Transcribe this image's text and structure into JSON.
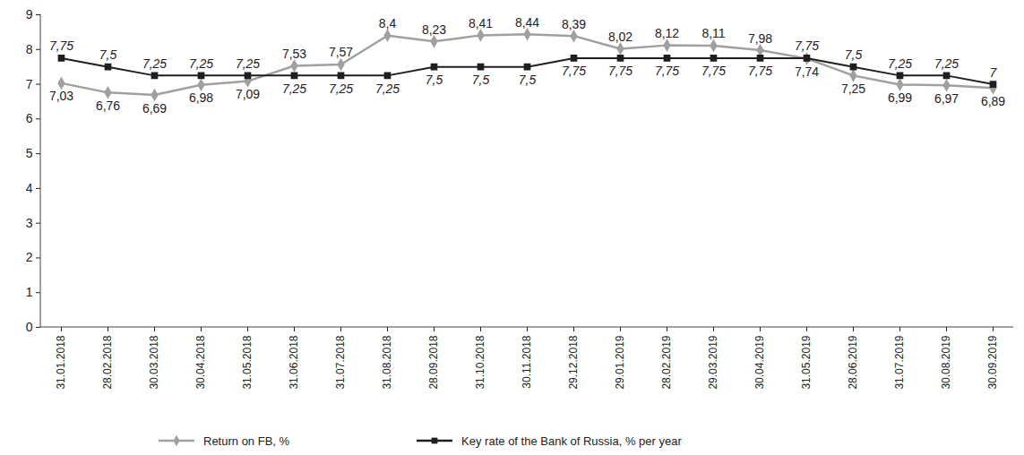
{
  "chart_data": {
    "type": "line",
    "x": [
      "31.01.2018",
      "28.02.2018",
      "30.03.2018",
      "30.04.2018",
      "31.05.2018",
      "31.06.2018",
      "31.07.2018",
      "31.08.2018",
      "28.09.2018",
      "31.10.2018",
      "30.11.2018",
      "29.12.2018",
      "29.01.2019",
      "28.02.2019",
      "29.03.2019",
      "30.04.2019",
      "31.05.2019",
      "28.06.2019",
      "31.07.2019",
      "30.08.2019",
      "30.09.2019"
    ],
    "series": [
      {
        "name": "Return on FB, %",
        "color": "#a0a0a0",
        "marker": "diamond",
        "values": [
          7.03,
          6.76,
          6.69,
          6.98,
          7.09,
          7.53,
          7.57,
          8.4,
          8.23,
          8.41,
          8.44,
          8.39,
          8.02,
          8.12,
          8.11,
          7.98,
          7.74,
          7.25,
          6.99,
          6.97,
          6.89
        ],
        "value_labels": [
          "7,03",
          "6,76",
          "6,69",
          "6,98",
          "7,09",
          "7,53",
          "7,57",
          "8,4",
          "8,23",
          "8,41",
          "8,44",
          "8,39",
          "8,02",
          "8,12",
          "8,11",
          "7,98",
          "7,74",
          "7,25",
          "6,99",
          "6,97",
          "6,89"
        ]
      },
      {
        "name": "Key rate of the Bank of Russia, % per year",
        "color": "#1f1f1f",
        "marker": "square",
        "values": [
          7.75,
          7.5,
          7.25,
          7.25,
          7.25,
          7.25,
          7.25,
          7.25,
          7.5,
          7.5,
          7.5,
          7.75,
          7.75,
          7.75,
          7.75,
          7.75,
          7.75,
          7.5,
          7.25,
          7.25,
          7
        ],
        "value_labels": [
          "7,75",
          "7,5",
          "7,25",
          "7,25",
          "7,25",
          "7,25",
          "7,25",
          "7,25",
          "7,5",
          "7,5",
          "7,5",
          "7,75",
          "7,75",
          "7,75",
          "7,75",
          "7,75",
          "7,75",
          "7,5",
          "7,25",
          "7,25",
          "7"
        ]
      }
    ],
    "ylim": [
      0,
      9
    ],
    "yticks": [
      0,
      1,
      2,
      3,
      4,
      5,
      6,
      7,
      8,
      9
    ],
    "grid": false,
    "data_labels": true,
    "legend": "bottom"
  }
}
